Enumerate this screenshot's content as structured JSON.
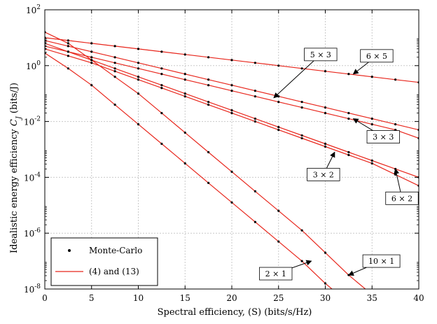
{
  "chart_data": {
    "type": "line",
    "xlabel": "Spectral efficiency, (S) (bits/s/Hz)",
    "ylabel": "Idealistic energy efficiency C_J (bits/J)",
    "ylabel_base": "Idealistic energy efficiency ",
    "ylabel_sym": "C",
    "ylabel_sub": "J",
    "ylabel_tail": " (bits/J)",
    "xlim": [
      0,
      40
    ],
    "ylim": [
      1e-08,
      100
    ],
    "yscale": "log",
    "grid": true,
    "x_ticks": [
      0,
      5,
      10,
      15,
      20,
      25,
      30,
      35,
      40
    ],
    "y_tick_exponents": [
      -8,
      -6,
      -4,
      -2,
      0,
      2
    ],
    "legend": {
      "position": "bottom-left",
      "entries": [
        {
          "label": "Monte-Carlo",
          "marker": "dot"
        },
        {
          "label": "(4) and (13)",
          "marker": "line"
        }
      ]
    },
    "colors": {
      "line": "#e8261c",
      "marker": "#000000",
      "grid": "#c9c9c9"
    },
    "series": [
      {
        "name": "6 × 5",
        "x": [
          0,
          2.5,
          5,
          7.5,
          10,
          12.5,
          15,
          17.5,
          20,
          22.5,
          25,
          27.5,
          30,
          32.5,
          35,
          37.5,
          40
        ],
        "y_log10": [
          1.0,
          0.9,
          0.8,
          0.7,
          0.6,
          0.5,
          0.4,
          0.3,
          0.2,
          0.1,
          0.0,
          -0.1,
          -0.2,
          -0.3,
          -0.4,
          -0.5,
          -0.6
        ]
      },
      {
        "name": "5 × 3",
        "x": [
          0,
          2.5,
          5,
          7.5,
          10,
          12.5,
          15,
          17.5,
          20,
          22.5,
          25,
          27.5,
          30,
          32.5,
          35,
          37.5,
          40
        ],
        "y_log10": [
          0.9,
          0.7,
          0.5,
          0.3,
          0.1,
          -0.1,
          -0.3,
          -0.5,
          -0.7,
          -0.9,
          -1.1,
          -1.3,
          -1.5,
          -1.7,
          -1.9,
          -2.1,
          -2.3
        ]
      },
      {
        "name": "3 × 3",
        "x": [
          0,
          2.5,
          5,
          7.5,
          10,
          12.5,
          15,
          17.5,
          20,
          22.5,
          25,
          27.5,
          30,
          32.5,
          35,
          37.5,
          40
        ],
        "y_log10": [
          0.7,
          0.5,
          0.3,
          0.1,
          -0.1,
          -0.3,
          -0.5,
          -0.7,
          -0.9,
          -1.1,
          -1.3,
          -1.5,
          -1.7,
          -1.9,
          -2.1,
          -2.3,
          -2.6
        ]
      },
      {
        "name": "6 × 2",
        "x": [
          0,
          2.5,
          5,
          7.5,
          10,
          12.5,
          15,
          17.5,
          20,
          22.5,
          25,
          27.5,
          30,
          32.5,
          35,
          37.5,
          40
        ],
        "y_log10": [
          0.8,
          0.5,
          0.2,
          -0.1,
          -0.4,
          -0.7,
          -1.0,
          -1.3,
          -1.6,
          -1.9,
          -2.2,
          -2.5,
          -2.8,
          -3.1,
          -3.4,
          -3.7,
          -4.0
        ]
      },
      {
        "name": "3 × 2",
        "x": [
          0,
          2.5,
          5,
          7.5,
          10,
          12.5,
          15,
          17.5,
          20,
          22.5,
          25,
          27.5,
          30,
          32.5,
          35,
          37.5,
          40
        ],
        "y_log10": [
          0.6,
          0.35,
          0.1,
          -0.2,
          -0.5,
          -0.8,
          -1.1,
          -1.4,
          -1.7,
          -2.0,
          -2.3,
          -2.6,
          -2.9,
          -3.2,
          -3.5,
          -3.9,
          -4.3
        ]
      },
      {
        "name": "10 × 1",
        "x": [
          0,
          2.5,
          5,
          7.5,
          10,
          12.5,
          15,
          17.5,
          20,
          22.5,
          25,
          27.5,
          30,
          32.5,
          35
        ],
        "y_log10": [
          1.2,
          0.8,
          0.2,
          -0.4,
          -1.0,
          -1.7,
          -2.4,
          -3.1,
          -3.8,
          -4.5,
          -5.2,
          -5.9,
          -6.7,
          -7.5,
          -8.2
        ]
      },
      {
        "name": "2 × 1",
        "x": [
          0,
          2.5,
          5,
          7.5,
          10,
          12.5,
          15,
          17.5,
          20,
          22.5,
          25,
          27.5,
          30,
          32.5
        ],
        "y_log10": [
          0.45,
          -0.1,
          -0.7,
          -1.4,
          -2.1,
          -2.8,
          -3.5,
          -4.2,
          -4.9,
          -5.6,
          -6.3,
          -7.0,
          -7.8,
          -8.5
        ]
      }
    ],
    "annotations": [
      {
        "text": "5 × 3",
        "series": "5 × 3",
        "x": 24.5,
        "y_log10": -1.15,
        "box_x": 29.5,
        "box_y_log10": 0.4
      },
      {
        "text": "6 × 5",
        "series": "6 × 5",
        "x": 33.0,
        "y_log10": -0.3,
        "box_x": 35.5,
        "box_y_log10": 0.35
      },
      {
        "text": "3 × 3",
        "series": "3 × 3",
        "x": 33.0,
        "y_log10": -1.9,
        "box_x": 36.2,
        "box_y_log10": -2.55
      },
      {
        "text": "3 × 2",
        "series": "3 × 2",
        "x": 31.0,
        "y_log10": -3.1,
        "box_x": 29.8,
        "box_y_log10": -3.9
      },
      {
        "text": "6 × 2",
        "series": "6 × 2",
        "x": 37.5,
        "y_log10": -3.7,
        "box_x": 38.2,
        "box_y_log10": -4.75
      },
      {
        "text": "10 × 1",
        "series": "10 × 1",
        "x": 32.5,
        "y_log10": -7.5,
        "box_x": 36.0,
        "box_y_log10": -7.0
      },
      {
        "text": "2 × 1",
        "series": "2 × 1",
        "x": 28.5,
        "y_log10": -7.0,
        "box_x": 24.7,
        "box_y_log10": -7.45
      }
    ]
  }
}
